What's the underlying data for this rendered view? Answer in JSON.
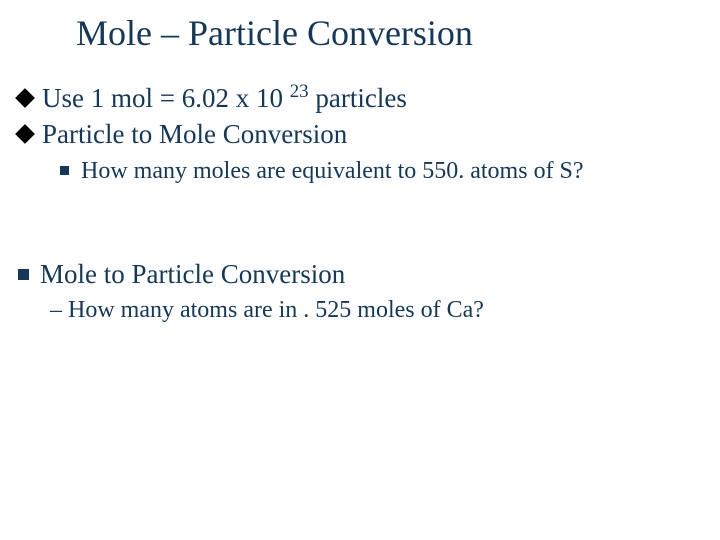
{
  "colors": {
    "text": "#13385b",
    "bullet_black": "#000000",
    "background": "#ffffff"
  },
  "typography": {
    "font_family": "Times New Roman",
    "title_fontsize": 36,
    "level1_fontsize": 27,
    "level2_fontsize": 24
  },
  "title": "Mole – Particle Conversion",
  "bullets": {
    "b1_pre": "Use 1 mol = 6.02 x 10 ",
    "b1_sup": "23",
    "b1_post": " particles",
    "b2": "Particle to Mole Conversion",
    "b2_sub": "How many moles are equivalent to 550. atoms of S?",
    "b3": "Mole to Particle Conversion",
    "b3_sub": "– How many atoms are in . 525 moles of Ca?"
  }
}
